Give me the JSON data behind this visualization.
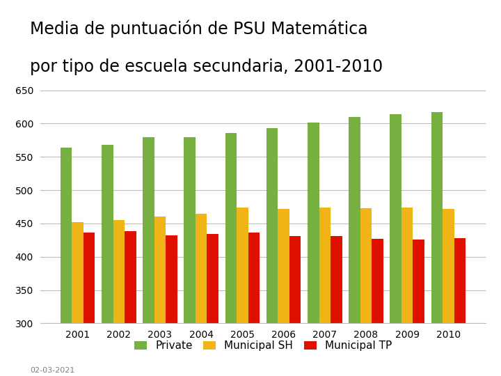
{
  "title_line1": "Media de puntuación de PSU Matemática",
  "title_line2": "por tipo de escuela secundaria, 2001-2010",
  "years": [
    2001,
    2002,
    2003,
    2004,
    2005,
    2006,
    2007,
    2008,
    2009,
    2010
  ],
  "private": [
    564,
    568,
    580,
    580,
    586,
    593,
    602,
    610,
    614,
    617
  ],
  "municipal_sh": [
    452,
    455,
    460,
    465,
    474,
    472,
    474,
    473,
    474,
    472
  ],
  "municipal_tp": [
    436,
    438,
    432,
    434,
    436,
    431,
    431,
    427,
    426,
    428
  ],
  "color_private": "#76b041",
  "color_msh": "#f0b416",
  "color_mtp": "#e01000",
  "ylim_min": 300,
  "ylim_max": 650,
  "yticks": [
    300,
    350,
    400,
    450,
    500,
    550,
    600,
    650
  ],
  "legend_labels": [
    "Private",
    "Municipal SH",
    "Municipal TP"
  ],
  "footnote": "02-03-2021",
  "title_fontsize": 17,
  "tick_fontsize": 10,
  "legend_fontsize": 11,
  "footnote_fontsize": 8,
  "background_color": "#ffffff",
  "grid_color": "#bbbbbb"
}
